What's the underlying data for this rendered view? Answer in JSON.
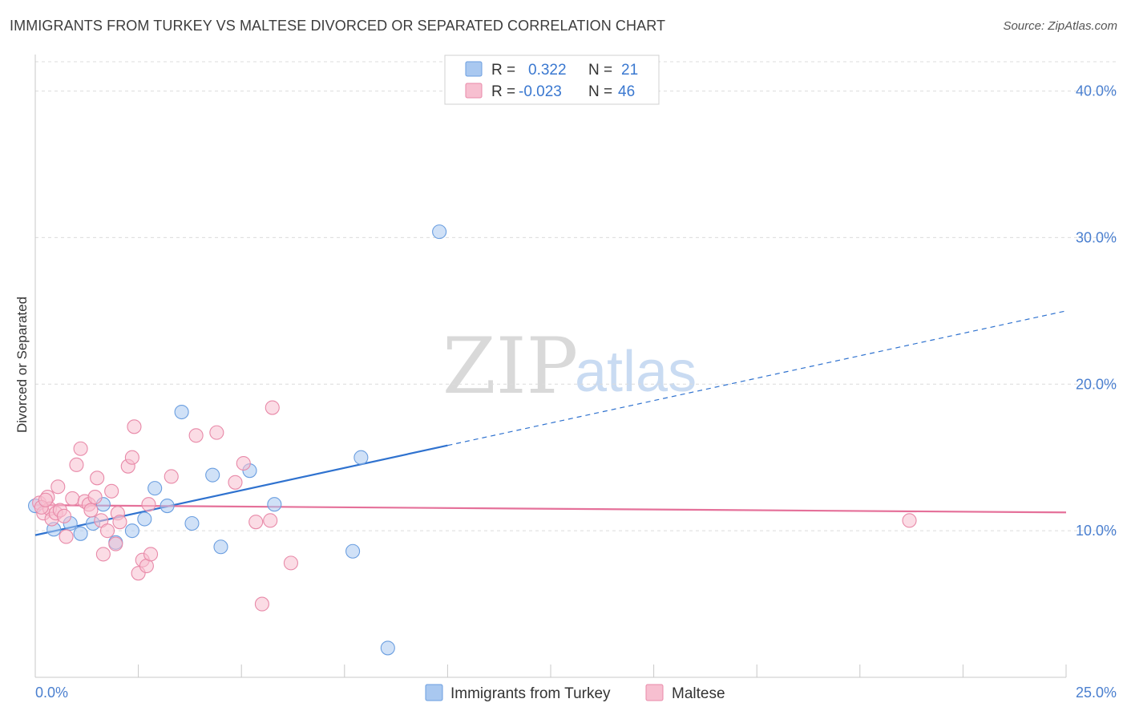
{
  "header": {
    "title": "IMMIGRANTS FROM TURKEY VS MALTESE DIVORCED OR SEPARATED CORRELATION CHART",
    "source": "Source: ZipAtlas.com"
  },
  "watermark": {
    "zip": "ZIP",
    "atlas": "atlas"
  },
  "legend_top": {
    "rows": [
      {
        "r_label": "R =",
        "r_value": "0.322",
        "n_label": "N =",
        "n_value": "21",
        "color": "#a9c8f0",
        "stroke": "#6a9ee0"
      },
      {
        "r_label": "R =",
        "r_value": "-0.023",
        "n_label": "N =",
        "n_value": "46",
        "color": "#f7bfd0",
        "stroke": "#e889a8"
      }
    ]
  },
  "legend_bottom": {
    "items": [
      {
        "label": "Immigrants from Turkey",
        "color": "#a9c8f0",
        "stroke": "#6a9ee0"
      },
      {
        "label": "Maltese",
        "color": "#f7bfd0",
        "stroke": "#e889a8"
      }
    ]
  },
  "chart_data": {
    "type": "scatter",
    "title": "IMMIGRANTS FROM TURKEY VS MALTESE DIVORCED OR SEPARATED CORRELATION CHART",
    "xlabel": "",
    "ylabel": "Divorced or Separated",
    "xlim": [
      0,
      25
    ],
    "ylim": [
      0,
      42
    ],
    "x_tick_labels": [
      "0.0%",
      "25.0%"
    ],
    "y_ticks": [
      10,
      20,
      30,
      40
    ],
    "y_tick_labels": [
      "10.0%",
      "20.0%",
      "30.0%",
      "40.0%"
    ],
    "grid": true,
    "legend_position": "top-center",
    "series": [
      {
        "name": "Immigrants from Turkey",
        "color": "#6a9ee0",
        "fill": "#a9c8f0",
        "points": [
          [
            0.0,
            11.7
          ],
          [
            0.45,
            10.1
          ],
          [
            0.85,
            10.5
          ],
          [
            1.1,
            9.8
          ],
          [
            1.4,
            10.5
          ],
          [
            1.65,
            11.8
          ],
          [
            1.95,
            9.2
          ],
          [
            2.35,
            10.0
          ],
          [
            2.65,
            10.8
          ],
          [
            2.9,
            12.9
          ],
          [
            3.2,
            11.7
          ],
          [
            3.55,
            18.1
          ],
          [
            3.8,
            10.5
          ],
          [
            4.3,
            13.8
          ],
          [
            4.5,
            8.9
          ],
          [
            5.2,
            14.1
          ],
          [
            5.8,
            11.8
          ],
          [
            7.7,
            8.6
          ],
          [
            7.9,
            15.0
          ],
          [
            8.55,
            2.0
          ],
          [
            9.8,
            30.4
          ]
        ],
        "trend": {
          "x0": 0,
          "y0": 9.7,
          "x_solid_end": 10.0,
          "x1": 25,
          "y1": 25.0
        }
      },
      {
        "name": "Maltese",
        "color": "#e889a8",
        "fill": "#f7bfd0",
        "points": [
          [
            0.1,
            11.9
          ],
          [
            0.2,
            11.2
          ],
          [
            0.3,
            12.3
          ],
          [
            0.35,
            11.5
          ],
          [
            0.4,
            10.8
          ],
          [
            0.5,
            11.2
          ],
          [
            0.55,
            13.0
          ],
          [
            0.6,
            11.4
          ],
          [
            0.7,
            11.0
          ],
          [
            0.75,
            9.6
          ],
          [
            0.9,
            12.2
          ],
          [
            1.0,
            14.5
          ],
          [
            1.1,
            15.6
          ],
          [
            1.2,
            12.0
          ],
          [
            1.3,
            11.8
          ],
          [
            1.35,
            11.4
          ],
          [
            1.45,
            12.3
          ],
          [
            1.5,
            13.6
          ],
          [
            1.6,
            10.7
          ],
          [
            1.65,
            8.4
          ],
          [
            1.75,
            10.0
          ],
          [
            1.85,
            12.7
          ],
          [
            1.95,
            9.1
          ],
          [
            2.0,
            11.2
          ],
          [
            2.05,
            10.6
          ],
          [
            2.25,
            14.4
          ],
          [
            2.35,
            15.0
          ],
          [
            2.4,
            17.1
          ],
          [
            2.5,
            7.1
          ],
          [
            2.6,
            8.0
          ],
          [
            2.7,
            7.6
          ],
          [
            2.8,
            8.4
          ],
          [
            2.75,
            11.8
          ],
          [
            3.3,
            13.7
          ],
          [
            3.9,
            16.5
          ],
          [
            4.4,
            16.7
          ],
          [
            4.85,
            13.3
          ],
          [
            5.05,
            14.6
          ],
          [
            5.35,
            10.6
          ],
          [
            5.5,
            5.0
          ],
          [
            5.7,
            10.7
          ],
          [
            5.75,
            18.4
          ],
          [
            6.2,
            7.8
          ],
          [
            21.2,
            10.7
          ],
          [
            0.15,
            11.6
          ],
          [
            0.25,
            12.1
          ]
        ],
        "trend": {
          "x0": 0,
          "y0": 11.75,
          "x_solid_end": 25,
          "x1": 25,
          "y1": 11.25
        }
      }
    ]
  }
}
